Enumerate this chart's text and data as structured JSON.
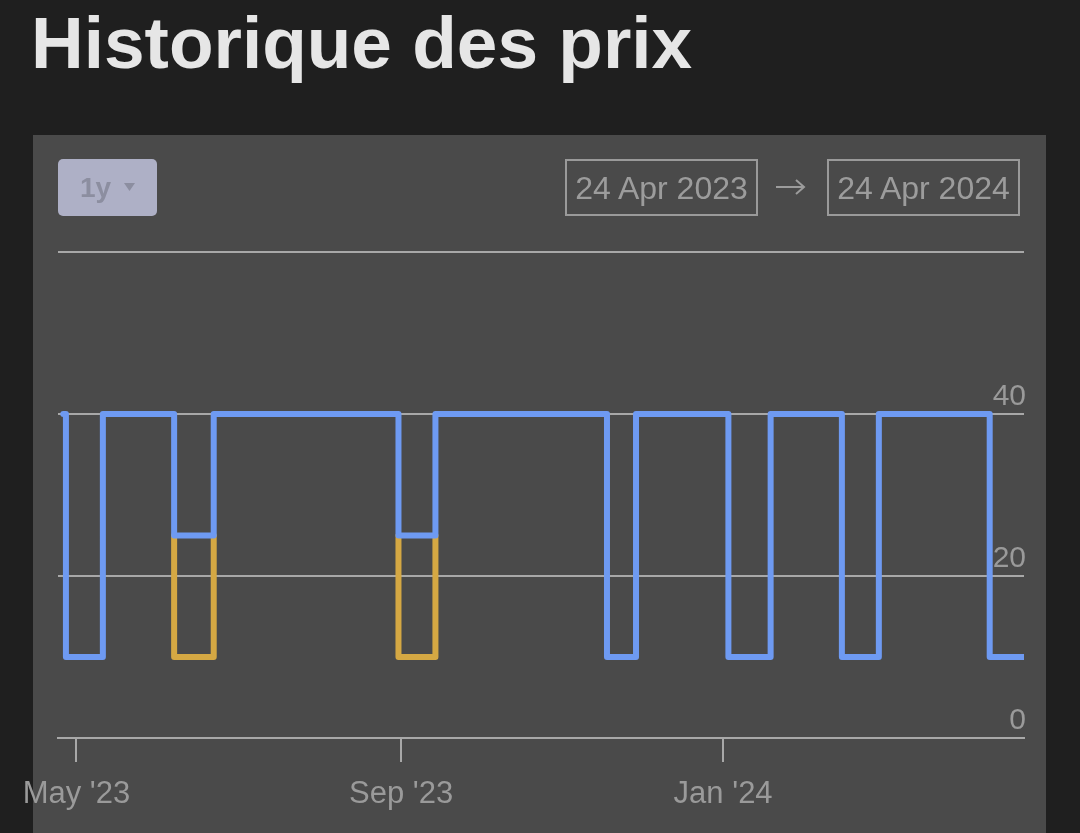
{
  "chart_data": {
    "type": "step",
    "title": "Historique des prix",
    "annotations": [
      "1y",
      "24 Apr 2023",
      "24 Apr 2024"
    ],
    "xlim": [
      "2023-04-24",
      "2024-04-24"
    ],
    "xticks": [
      {
        "value": "2023-05-01",
        "label": "May '23"
      },
      {
        "value": "2023-09-01",
        "label": "Sep '23"
      },
      {
        "value": "2024-01-01",
        "label": "Jan '24"
      }
    ],
    "ylim": [
      0,
      60
    ],
    "yticks": [
      0,
      20,
      40,
      {
        "value": 60,
        "label": null
      }
    ],
    "grid": "y",
    "legend": false,
    "marker": "none",
    "line_style": "solid",
    "series": [
      {
        "color": "#6e9af2",
        "x": [
          "2023-04-26",
          "2023-04-27",
          "2023-05-11",
          "2023-06-07",
          "2023-06-22",
          "2023-08-31",
          "2023-09-14",
          "2023-11-18",
          "2023-11-29",
          "2024-01-03",
          "2024-01-19",
          "2024-02-15",
          "2024-02-29",
          "2024-04-11",
          "2024-04-24"
        ],
        "values": [
          40,
          10,
          40,
          25,
          40,
          25,
          40,
          10,
          40,
          10,
          40,
          10,
          40,
          10,
          10
        ]
      },
      {
        "color": "#d5a843",
        "x": [
          "2023-06-07",
          "2023-06-07",
          "2023-06-22",
          "2023-07-27",
          "2023-08-31",
          "2023-08-31",
          "2023-09-14"
        ],
        "values": [
          25,
          10,
          25,
          null,
          25,
          10,
          25
        ]
      }
    ]
  }
}
